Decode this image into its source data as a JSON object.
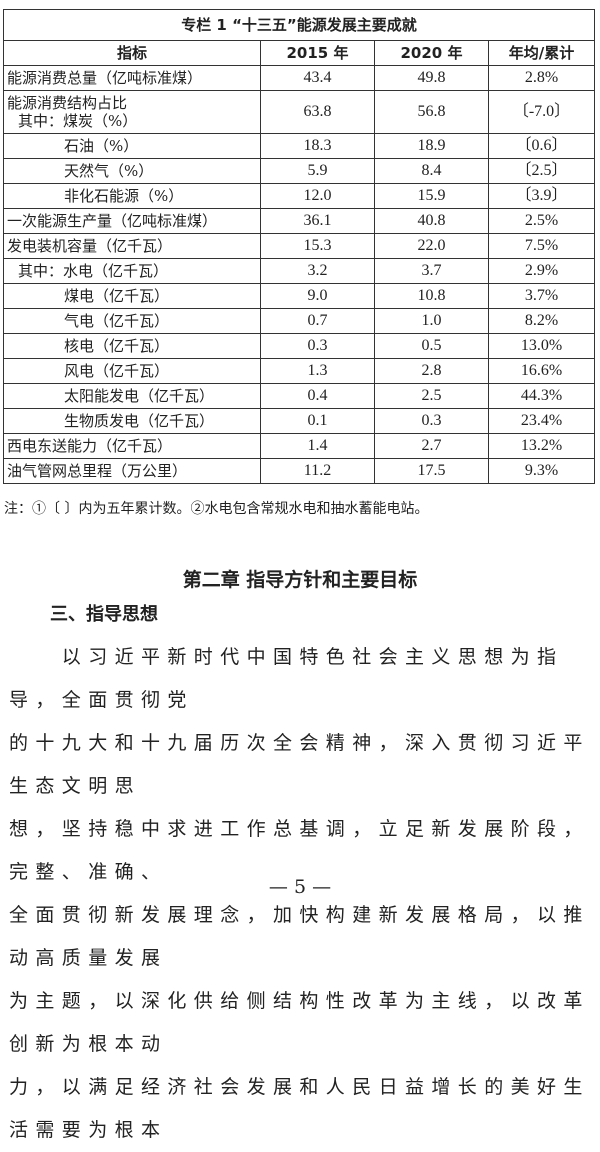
{
  "table": {
    "title": "专栏 1 “十三五”能源发展主要成就",
    "headers": [
      "指标",
      "2015 年",
      "2020 年",
      "年均/累计"
    ],
    "rows": [
      {
        "label": "能源消费总量（亿吨标准煤）",
        "v2015": "43.4",
        "v2020": "49.8",
        "change": "2.8%"
      },
      {
        "label": "能源消费结构占比",
        "label2": "其中：煤炭（%）",
        "v2015": "63.8",
        "v2020": "56.8",
        "change": "〔-7.0〕"
      },
      {
        "label": "石油（%）",
        "v2015": "18.3",
        "v2020": "18.9",
        "change": "〔0.6〕"
      },
      {
        "label": "天然气（%）",
        "v2015": "5.9",
        "v2020": "8.4",
        "change": "〔2.5〕"
      },
      {
        "label": "非化石能源（%）",
        "v2015": "12.0",
        "v2020": "15.9",
        "change": "〔3.9〕"
      },
      {
        "label": "一次能源生产量（亿吨标准煤）",
        "v2015": "36.1",
        "v2020": "40.8",
        "change": "2.5%"
      },
      {
        "label": "发电装机容量（亿千瓦）",
        "v2015": "15.3",
        "v2020": "22.0",
        "change": "7.5%"
      },
      {
        "label": "其中：水电（亿千瓦）",
        "v2015": "3.2",
        "v2020": "3.7",
        "change": "2.9%"
      },
      {
        "label": "煤电（亿千瓦）",
        "v2015": "9.0",
        "v2020": "10.8",
        "change": "3.7%"
      },
      {
        "label": "气电（亿千瓦）",
        "v2015": "0.7",
        "v2020": "1.0",
        "change": "8.2%"
      },
      {
        "label": "核电（亿千瓦）",
        "v2015": "0.3",
        "v2020": "0.5",
        "change": "13.0%"
      },
      {
        "label": "风电（亿千瓦）",
        "v2015": "1.3",
        "v2020": "2.8",
        "change": "16.6%"
      },
      {
        "label": "太阳能发电（亿千瓦）",
        "v2015": "0.4",
        "v2020": "2.5",
        "change": "44.3%"
      },
      {
        "label": "生物质发电（亿千瓦）",
        "v2015": "0.1",
        "v2020": "0.3",
        "change": "23.4%"
      },
      {
        "label": "西电东送能力（亿千瓦）",
        "v2015": "1.4",
        "v2020": "2.7",
        "change": "13.2%"
      },
      {
        "label": "油气管网总里程（万公里）",
        "v2015": "11.2",
        "v2020": "17.5",
        "change": "9.3%"
      }
    ]
  },
  "note": "注：①〔 〕内为五年累计数。②水电包含常规水电和抽水蓄能电站。",
  "chapter_title": "第二章 指导方针和主要目标",
  "section_title": "三、指导思想",
  "paragraph_lines": [
    "　　以习近平新时代中国特色社会主义思想为指导，全面贯彻党",
    "的十九大和十九届历次全会精神，深入贯彻习近平生态文明思",
    "想，坚持稳中求进工作总基调，立足新发展阶段，完整、准确、",
    "全面贯彻新发展理念，加快构建新发展格局，以推动高质量发展",
    "为主题，以深化供给侧结构性改革为主线，以改革创新为根本动",
    "力，以满足经济社会发展和人民日益增长的美好生活需要为根本"
  ],
  "page_number": "— 5 —"
}
